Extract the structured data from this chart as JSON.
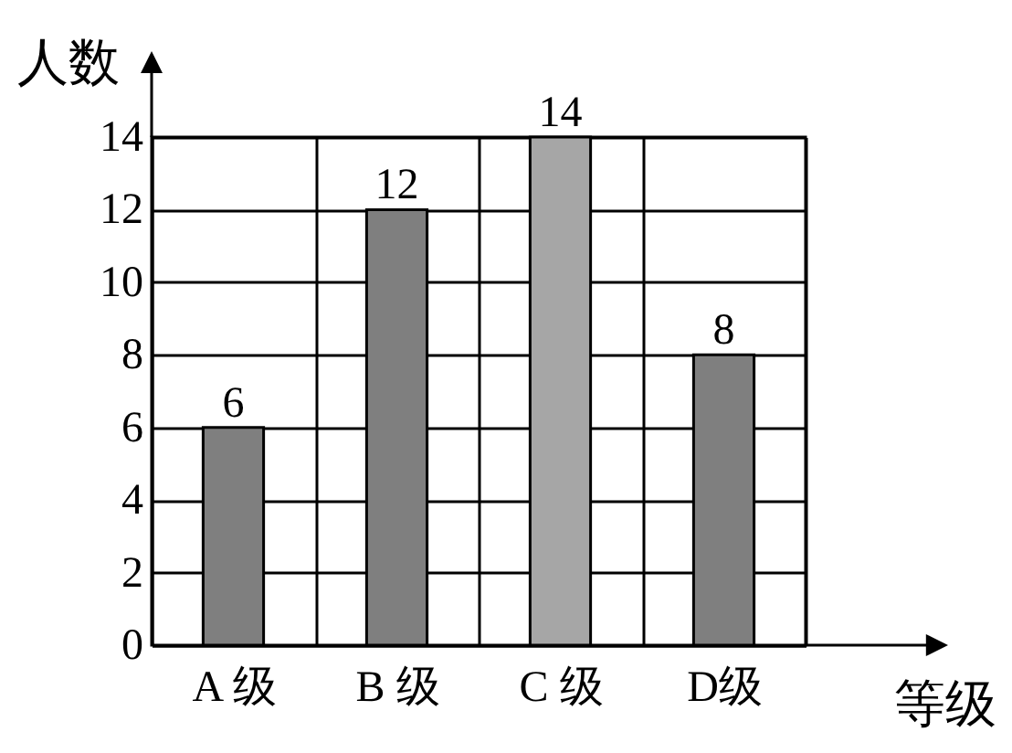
{
  "chart_data": {
    "type": "bar",
    "xlabel": "等级",
    "ylabel": "人数",
    "categories": [
      "A 级",
      "B 级",
      "C 级",
      "D级"
    ],
    "values": [
      6,
      12,
      14,
      8
    ],
    "colors": [
      "#7f7f7f",
      "#7f7f7f",
      "#a6a6a6",
      "#7f7f7f"
    ],
    "ylim": [
      0,
      14
    ],
    "yticks": [
      0,
      2,
      4,
      6,
      8,
      10,
      12,
      14
    ],
    "grid": true,
    "data_labels": true
  }
}
